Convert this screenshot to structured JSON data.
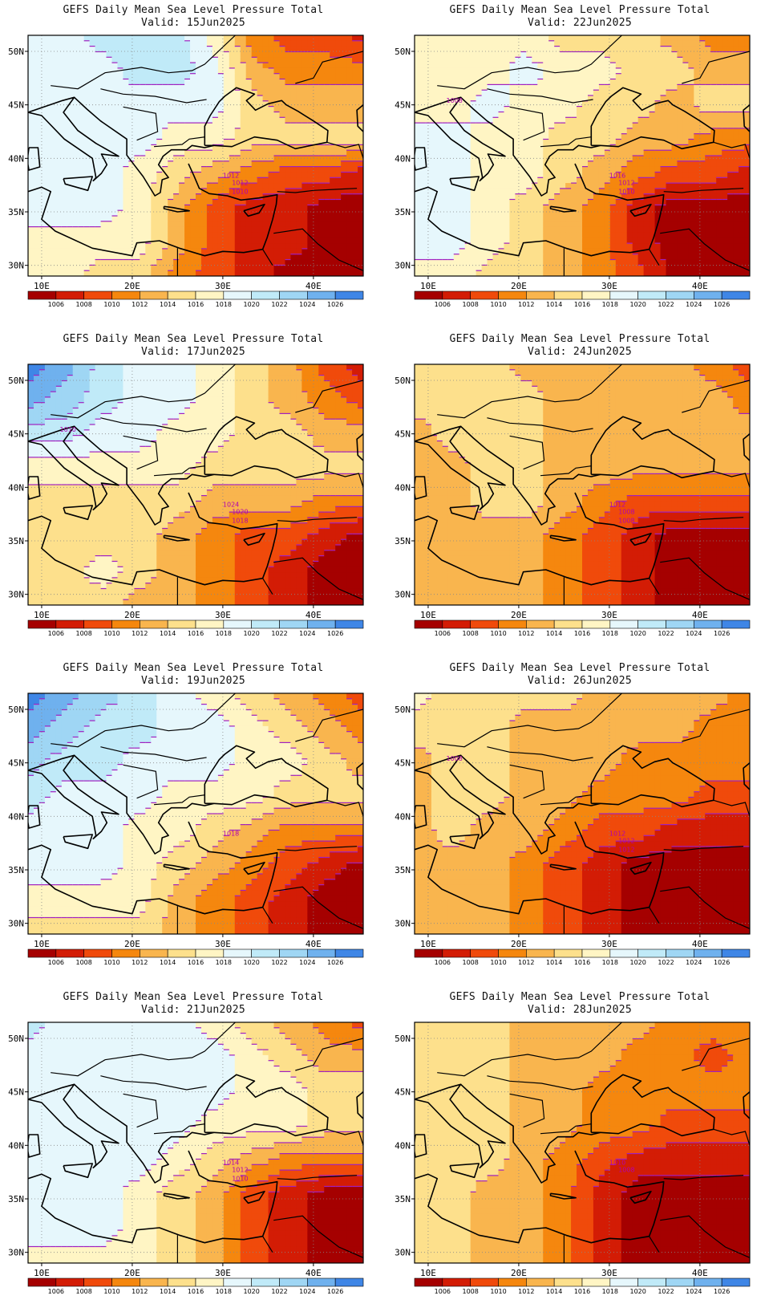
{
  "palette": {
    "1004": "#a50000",
    "1006": "#d31c05",
    "1008": "#f04a0b",
    "1010": "#f5870e",
    "1012": "#f9b54e",
    "1014": "#fde08c",
    "1016": "#fff5c4",
    "1018": "#e6f7fc",
    "1020": "#c0eaf8",
    "1022": "#9fd6f4",
    "1024": "#6fb1ee",
    "1026": "#3f86e6",
    "1028": "#2260d2"
  },
  "contour_color": "#a020c0",
  "colorbar_labels": [
    "1006",
    "1008",
    "1010",
    "1012",
    "1014",
    "1016",
    "1018",
    "1020",
    "1022",
    "1024",
    "1026"
  ],
  "axes": {
    "lon_labels": [
      "10E",
      "20E",
      "30E",
      "40E"
    ],
    "lat_labels": [
      "50N",
      "45N",
      "40N",
      "35N",
      "30N"
    ]
  },
  "panels": [
    {
      "id": "p1",
      "title": "GEFS Daily Mean Sea Level Pressure Total",
      "valid": "Valid: 15Jun2025",
      "values": [
        [
          1018,
          1018,
          1020,
          1020,
          1020,
          1016,
          1010,
          1008,
          1008,
          1006
        ],
        [
          1018,
          1018,
          1018,
          1020,
          1020,
          1018,
          1012,
          1010,
          1010,
          1010
        ],
        [
          1018,
          1018,
          1018,
          1018,
          1018,
          1018,
          1014,
          1012,
          1012,
          1012
        ],
        [
          1018,
          1018,
          1018,
          1018,
          1016,
          1016,
          1014,
          1014,
          1014,
          1014
        ],
        [
          1018,
          1018,
          1018,
          1016,
          1014,
          1012,
          1010,
          1008,
          1008,
          1006
        ],
        [
          1018,
          1018,
          1018,
          1016,
          1012,
          1008,
          1006,
          1006,
          1004,
          1004
        ],
        [
          1016,
          1016,
          1016,
          1016,
          1012,
          1008,
          1006,
          1006,
          1004,
          1004
        ],
        [
          1016,
          1016,
          1014,
          1014,
          1010,
          1008,
          1006,
          1004,
          1004,
          1004
        ]
      ],
      "labels": [
        "1012",
        "1012",
        "1010"
      ]
    },
    {
      "id": "p2",
      "title": "GEFS Daily Mean Sea Level Pressure Total",
      "valid": "Valid: 22Jun2025",
      "values": [
        [
          1016,
          1016,
          1016,
          1016,
          1014,
          1014,
          1014,
          1012,
          1010,
          1010
        ],
        [
          1016,
          1016,
          1016,
          1018,
          1016,
          1016,
          1014,
          1014,
          1012,
          1012
        ],
        [
          1016,
          1016,
          1018,
          1016,
          1016,
          1014,
          1014,
          1012,
          1014,
          1014
        ],
        [
          1018,
          1018,
          1016,
          1016,
          1014,
          1014,
          1012,
          1012,
          1010,
          1010
        ],
        [
          1018,
          1018,
          1016,
          1016,
          1014,
          1012,
          1010,
          1008,
          1008,
          1006
        ],
        [
          1018,
          1018,
          1016,
          1014,
          1012,
          1010,
          1006,
          1004,
          1004,
          1004
        ],
        [
          1018,
          1018,
          1016,
          1014,
          1012,
          1010,
          1006,
          1004,
          1004,
          1004
        ],
        [
          1016,
          1016,
          1014,
          1014,
          1012,
          1010,
          1008,
          1004,
          1004,
          1004
        ]
      ],
      "labels": [
        "1016",
        "1012",
        "1010",
        "1008"
      ]
    },
    {
      "id": "p3",
      "title": "GEFS Daily Mean Sea Level Pressure Total",
      "valid": "Valid: 17Jun2025",
      "values": [
        [
          1026,
          1024,
          1020,
          1018,
          1018,
          1016,
          1014,
          1012,
          1008,
          1006
        ],
        [
          1024,
          1022,
          1020,
          1018,
          1018,
          1016,
          1014,
          1012,
          1010,
          1008
        ],
        [
          1020,
          1020,
          1018,
          1018,
          1016,
          1016,
          1014,
          1014,
          1012,
          1012
        ],
        [
          1016,
          1016,
          1016,
          1016,
          1016,
          1014,
          1014,
          1014,
          1014,
          1014
        ],
        [
          1014,
          1014,
          1014,
          1014,
          1014,
          1012,
          1012,
          1012,
          1010,
          1010
        ],
        [
          1014,
          1014,
          1014,
          1014,
          1012,
          1010,
          1008,
          1008,
          1006,
          1004
        ],
        [
          1014,
          1014,
          1016,
          1014,
          1012,
          1010,
          1008,
          1006,
          1004,
          1004
        ],
        [
          1014,
          1014,
          1014,
          1012,
          1012,
          1010,
          1008,
          1006,
          1004,
          1004
        ]
      ],
      "labels": [
        "1024",
        "1020",
        "1018",
        "1010"
      ]
    },
    {
      "id": "p4",
      "title": "GEFS Daily Mean Sea Level Pressure Total",
      "valid": "Valid: 24Jun2025",
      "values": [
        [
          1014,
          1014,
          1014,
          1012,
          1012,
          1012,
          1012,
          1012,
          1010,
          1008
        ],
        [
          1014,
          1014,
          1014,
          1014,
          1012,
          1012,
          1012,
          1012,
          1012,
          1010
        ],
        [
          1012,
          1014,
          1014,
          1014,
          1012,
          1012,
          1012,
          1012,
          1012,
          1012
        ],
        [
          1012,
          1012,
          1014,
          1014,
          1012,
          1012,
          1012,
          1012,
          1012,
          1012
        ],
        [
          1012,
          1012,
          1014,
          1014,
          1012,
          1010,
          1008,
          1008,
          1008,
          1008
        ],
        [
          1012,
          1012,
          1012,
          1012,
          1010,
          1008,
          1006,
          1004,
          1004,
          1004
        ],
        [
          1012,
          1012,
          1012,
          1012,
          1010,
          1008,
          1006,
          1004,
          1004,
          1004
        ],
        [
          1012,
          1012,
          1012,
          1012,
          1010,
          1008,
          1006,
          1004,
          1004,
          1004
        ]
      ],
      "labels": [
        "1012",
        "1008",
        "1008"
      ]
    },
    {
      "id": "p5",
      "title": "GEFS Daily Mean Sea Level Pressure Total",
      "valid": "Valid: 19Jun2025",
      "values": [
        [
          1026,
          1024,
          1022,
          1020,
          1018,
          1016,
          1014,
          1012,
          1010,
          1008
        ],
        [
          1024,
          1022,
          1020,
          1020,
          1018,
          1018,
          1016,
          1014,
          1012,
          1010
        ],
        [
          1022,
          1020,
          1020,
          1018,
          1018,
          1018,
          1016,
          1016,
          1014,
          1012
        ],
        [
          1020,
          1018,
          1018,
          1018,
          1016,
          1016,
          1016,
          1014,
          1014,
          1014
        ],
        [
          1018,
          1018,
          1018,
          1016,
          1016,
          1014,
          1012,
          1010,
          1010,
          1010
        ],
        [
          1018,
          1018,
          1018,
          1016,
          1014,
          1012,
          1010,
          1008,
          1006,
          1004
        ],
        [
          1016,
          1016,
          1016,
          1016,
          1012,
          1010,
          1008,
          1006,
          1004,
          1004
        ],
        [
          1014,
          1014,
          1014,
          1014,
          1012,
          1010,
          1008,
          1006,
          1004,
          1004
        ]
      ],
      "labels": [
        "1018"
      ]
    },
    {
      "id": "p6",
      "title": "GEFS Daily Mean Sea Level Pressure Total",
      "valid": "Valid: 26Jun2025",
      "values": [
        [
          1016,
          1014,
          1014,
          1014,
          1014,
          1012,
          1012,
          1012,
          1012,
          1010
        ],
        [
          1014,
          1014,
          1014,
          1012,
          1012,
          1012,
          1012,
          1012,
          1010,
          1010
        ],
        [
          1012,
          1014,
          1014,
          1012,
          1012,
          1012,
          1010,
          1010,
          1010,
          1010
        ],
        [
          1012,
          1014,
          1014,
          1012,
          1012,
          1010,
          1010,
          1010,
          1008,
          1008
        ],
        [
          1012,
          1014,
          1012,
          1012,
          1010,
          1008,
          1008,
          1006,
          1006,
          1006
        ],
        [
          1012,
          1012,
          1012,
          1010,
          1008,
          1006,
          1004,
          1004,
          1004,
          1004
        ],
        [
          1012,
          1012,
          1012,
          1010,
          1008,
          1006,
          1004,
          1004,
          1004,
          1004
        ],
        [
          1012,
          1012,
          1012,
          1010,
          1008,
          1006,
          1004,
          1004,
          1004,
          1004
        ]
      ],
      "labels": [
        "1012",
        "1012",
        "1012",
        "1008"
      ]
    },
    {
      "id": "p7",
      "title": "GEFS Daily Mean Sea Level Pressure Total",
      "valid": "Valid: 21Jun2025",
      "values": [
        [
          1020,
          1018,
          1018,
          1018,
          1018,
          1016,
          1014,
          1012,
          1010,
          1008
        ],
        [
          1018,
          1018,
          1018,
          1018,
          1018,
          1018,
          1016,
          1014,
          1012,
          1012
        ],
        [
          1018,
          1018,
          1018,
          1018,
          1018,
          1018,
          1016,
          1016,
          1014,
          1014
        ],
        [
          1018,
          1018,
          1018,
          1018,
          1018,
          1016,
          1016,
          1016,
          1014,
          1014
        ],
        [
          1018,
          1018,
          1018,
          1018,
          1016,
          1014,
          1012,
          1010,
          1010,
          1010
        ],
        [
          1018,
          1018,
          1018,
          1016,
          1014,
          1012,
          1008,
          1006,
          1004,
          1004
        ],
        [
          1018,
          1018,
          1018,
          1016,
          1014,
          1012,
          1008,
          1006,
          1004,
          1004
        ],
        [
          1016,
          1016,
          1016,
          1016,
          1014,
          1012,
          1008,
          1006,
          1004,
          1004
        ]
      ],
      "labels": [
        "1014",
        "1012",
        "1010"
      ]
    },
    {
      "id": "p8",
      "title": "GEFS Daily Mean Sea Level Pressure Total",
      "valid": "Valid: 28Jun2025",
      "values": [
        [
          1014,
          1014,
          1014,
          1012,
          1012,
          1012,
          1012,
          1010,
          1010,
          1010
        ],
        [
          1014,
          1014,
          1014,
          1012,
          1012,
          1012,
          1010,
          1010,
          1008,
          1010
        ],
        [
          1014,
          1014,
          1014,
          1012,
          1012,
          1010,
          1010,
          1010,
          1010,
          1010
        ],
        [
          1014,
          1014,
          1014,
          1012,
          1012,
          1010,
          1010,
          1008,
          1008,
          1008
        ],
        [
          1014,
          1014,
          1014,
          1012,
          1010,
          1008,
          1006,
          1006,
          1006,
          1006
        ],
        [
          1014,
          1014,
          1012,
          1012,
          1010,
          1006,
          1004,
          1004,
          1004,
          1004
        ],
        [
          1014,
          1014,
          1012,
          1012,
          1010,
          1006,
          1004,
          1004,
          1004,
          1004
        ],
        [
          1014,
          1014,
          1012,
          1012,
          1010,
          1006,
          1004,
          1004,
          1004,
          1004
        ]
      ],
      "labels": [
        "1010",
        "1008"
      ]
    }
  ]
}
